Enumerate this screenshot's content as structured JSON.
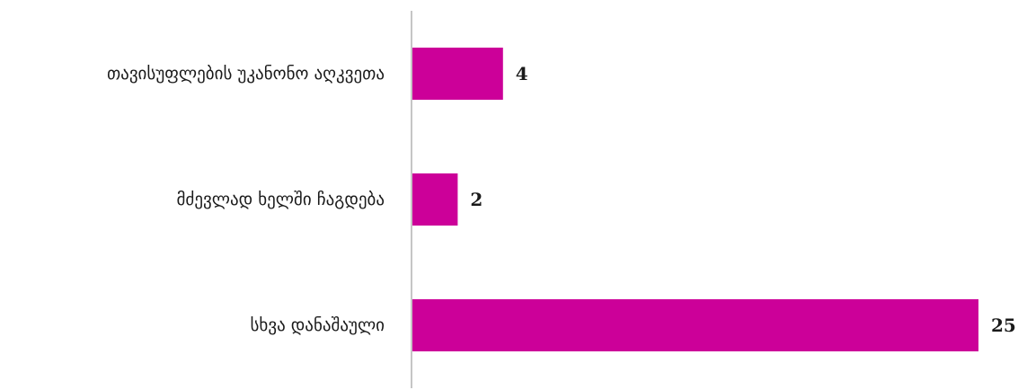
{
  "chart_data": {
    "type": "bar",
    "orientation": "horizontal",
    "categories": [
      "თავისუფლების უკანონო აღკვეთა",
      "მძევლად ხელში ჩაგდება",
      "სხვა დანაშაული"
    ],
    "values": [
      4,
      2,
      25
    ],
    "data_labels": [
      "4",
      "2",
      "25"
    ],
    "title": "",
    "xlabel": "",
    "ylabel": "",
    "xlim": [
      0,
      25
    ],
    "grid": false,
    "legend": "none",
    "colors": {
      "bar": "#CC0099",
      "axis": "#8c8c8c",
      "text": "#1a1a1a"
    }
  }
}
